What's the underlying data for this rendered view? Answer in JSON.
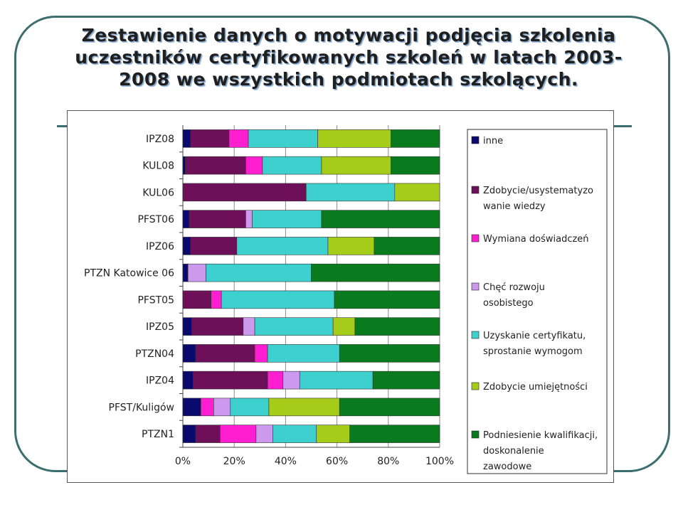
{
  "title": "Zestawienie danych o motywacji podjęcia szkolenia uczestników certyfikowanych szkoleń w latach 2003-2008 we wszystkich podmiotach szkolących.",
  "title_lines": [
    "Zestawienie danych o motywacji podjęcia szkolenia",
    "uczestników certyfikowanych szkoleń w latach 2003-",
    "2008 we wszystkich podmiotach szkolących."
  ],
  "chart_data": {
    "type": "bar",
    "orientation": "horizontal",
    "stacked": "percent",
    "categories": [
      "IPZ08",
      "KUL08",
      "KUL06",
      "PFST06",
      "IPZ06",
      "PTZN Katowice 06",
      "PFST05",
      "IPZ05",
      "PTZN04",
      "IPZ04",
      "PFST/Kuligów",
      "PTZN1"
    ],
    "xlim": [
      0,
      100
    ],
    "x_ticks": [
      "0%",
      "20%",
      "40%",
      "60%",
      "80%",
      "100%"
    ],
    "grid": true,
    "legend_position": "right",
    "series": [
      {
        "name": "inne",
        "color": "#0a0a6e",
        "values": [
          3,
          1,
          0,
          2.5,
          3,
          2,
          0,
          3.5,
          5,
          4,
          7,
          5
        ]
      },
      {
        "name": "Zdobycie/usystematyzowanie wiedzy",
        "legend_lines": [
          "Zdobycie/usystematyzo",
          "wanie wiedzy"
        ],
        "color": "#6e0f5a",
        "values": [
          15,
          23.5,
          48,
          22,
          18,
          0,
          11,
          20,
          23,
          29,
          0,
          9.5
        ]
      },
      {
        "name": "Wymiana doświadczeń",
        "legend_lines": [
          "Wymiana doświadczeń"
        ],
        "color": "#ff1fd0",
        "values": [
          7.5,
          6.5,
          0,
          0,
          0,
          0,
          4,
          0,
          5,
          6,
          5,
          14
        ]
      },
      {
        "name": "Chęć rozwoju osobistego",
        "legend_lines": [
          "Chęć rozwoju",
          "osobistego"
        ],
        "color": "#cc99ee",
        "values": [
          0,
          0,
          0,
          2.5,
          0,
          7,
          0,
          4.5,
          0,
          6.5,
          6.5,
          6.5
        ]
      },
      {
        "name": "Uzyskanie certyfikatu, sprostanie wymogom",
        "legend_lines": [
          "Uzyskanie certyfikatu,",
          "sprostanie wymogom"
        ],
        "color": "#3ecfcf",
        "values": [
          27,
          23,
          34.5,
          27,
          35.5,
          41,
          44,
          30.5,
          28,
          28.5,
          15,
          17
        ]
      },
      {
        "name": "Zdobycie umiejętności",
        "legend_lines": [
          "Zdobycie umiejętności"
        ],
        "color": "#a6cc1a",
        "values": [
          28.5,
          27,
          17.5,
          0,
          18,
          0,
          0,
          8.5,
          0,
          0,
          27.5,
          13
        ]
      },
      {
        "name": "Podniesienie kwalifikacji, doskonalenie zawodowe",
        "legend_lines": [
          "Podniesienie kwalifikacji,",
          "doskonalenie",
          "zawodowe"
        ],
        "color": "#0a7a1e",
        "values": [
          19,
          19,
          0,
          46,
          25.5,
          50,
          41,
          33,
          39,
          26,
          39,
          35
        ]
      }
    ]
  }
}
